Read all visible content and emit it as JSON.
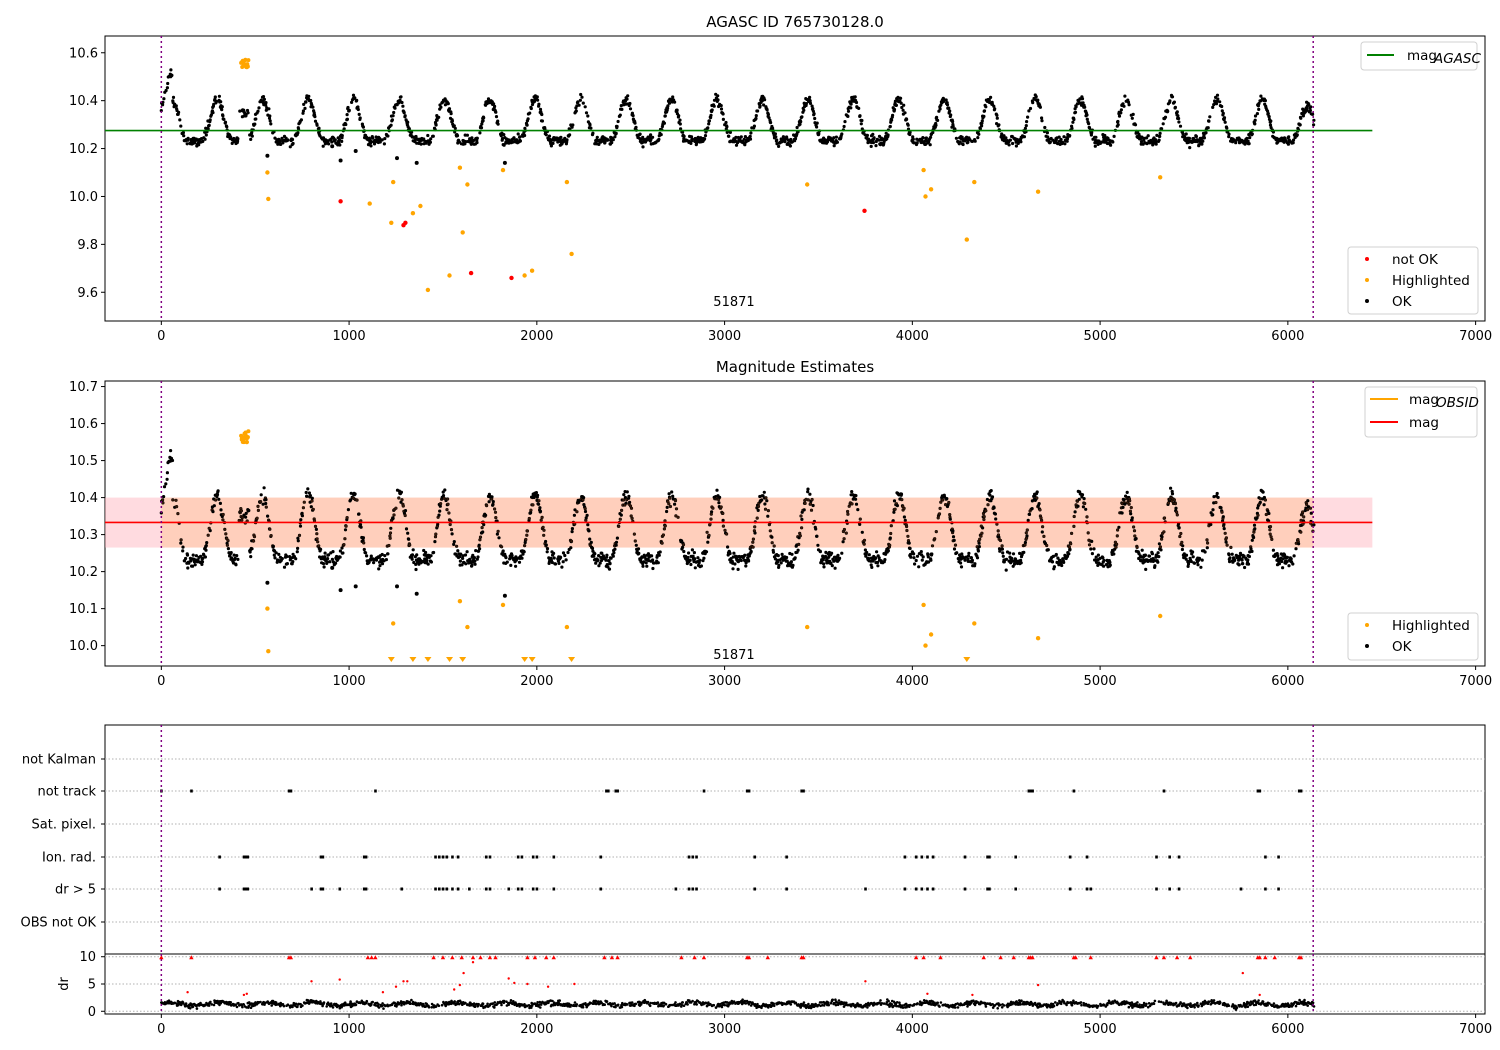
{
  "chart_data": [
    {
      "type": "scatter",
      "title": "AGASC ID 765730128.0",
      "xlim": [
        -300,
        7050
      ],
      "ylim": [
        9.48,
        10.67
      ],
      "xticks": [
        0,
        1000,
        2000,
        3000,
        4000,
        5000,
        6000,
        7000
      ],
      "yticks": [
        9.6,
        9.8,
        10.0,
        10.2,
        10.4,
        10.6
      ],
      "ytick_labels": [
        "9.6",
        "9.8",
        "10.0",
        "10.2",
        "10.4",
        "10.6"
      ],
      "annotation": {
        "x": 3050,
        "y": 9.56,
        "text": "51871"
      },
      "vlines": [
        0,
        6135
      ],
      "hline": {
        "y": 10.275,
        "x_range": [
          -300,
          6450
        ],
        "color": "#008000"
      },
      "series": [
        {
          "name": "OK",
          "color": "#000000",
          "description": "periodic light curve ~10.22–10.50, period ~242"
        },
        {
          "name": "Highlighted",
          "color": "#ffa500",
          "points": [
            [
              440,
              10.55
            ],
            [
              448,
              10.57
            ],
            [
              455,
              10.54
            ],
            [
              430,
              10.56
            ],
            [
              565,
              10.1
            ],
            [
              570,
              9.99
            ],
            [
              1110,
              9.97
            ],
            [
              1235,
              10.06
            ],
            [
              1225,
              9.89
            ],
            [
              1340,
              9.93
            ],
            [
              1380,
              9.96
            ],
            [
              1420,
              9.61
            ],
            [
              1535,
              9.67
            ],
            [
              1590,
              10.12
            ],
            [
              1605,
              9.85
            ],
            [
              1630,
              10.05
            ],
            [
              1820,
              10.11
            ],
            [
              1935,
              9.67
            ],
            [
              1975,
              9.69
            ],
            [
              2160,
              10.06
            ],
            [
              2185,
              9.76
            ],
            [
              3440,
              10.05
            ],
            [
              4060,
              10.11
            ],
            [
              4070,
              10.0
            ],
            [
              4100,
              10.03
            ],
            [
              4290,
              9.82
            ],
            [
              4330,
              10.06
            ],
            [
              4670,
              10.02
            ],
            [
              5320,
              10.08
            ]
          ]
        },
        {
          "name": "not OK",
          "color": "#ff0000",
          "points": [
            [
              955,
              9.98
            ],
            [
              1290,
              9.88
            ],
            [
              1300,
              9.89
            ],
            [
              1650,
              9.68
            ],
            [
              1865,
              9.66
            ],
            [
              3745,
              9.94
            ]
          ]
        }
      ],
      "extra_ok_points": [
        [
          565,
          10.17
        ],
        [
          955,
          10.15
        ],
        [
          1035,
          10.19
        ],
        [
          1255,
          10.16
        ],
        [
          1360,
          10.14
        ],
        [
          1830,
          10.14
        ],
        [
          910,
          10.21
        ]
      ],
      "legend_top": [
        {
          "label": "mag",
          "sub": "AGASC",
          "color": "#008000"
        }
      ],
      "legend_bottom": [
        {
          "label": "not OK",
          "color": "#ff0000"
        },
        {
          "label": "Highlighted",
          "color": "#ffa500"
        },
        {
          "label": "OK",
          "color": "#000000"
        }
      ]
    },
    {
      "type": "scatter",
      "title": "Magnitude Estimates",
      "xlim": [
        -300,
        7050
      ],
      "ylim": [
        9.945,
        10.715
      ],
      "xticks": [
        0,
        1000,
        2000,
        3000,
        4000,
        5000,
        6000,
        7000
      ],
      "yticks": [
        10.0,
        10.1,
        10.2,
        10.3,
        10.4,
        10.5,
        10.6,
        10.7
      ],
      "ytick_labels": [
        "10.0",
        "10.1",
        "10.2",
        "10.3",
        "10.4",
        "10.5",
        "10.6",
        "10.7"
      ],
      "annotation": {
        "x": 3050,
        "y": 9.975,
        "text": "51871"
      },
      "vlines": [
        0,
        6135
      ],
      "band": {
        "y_range": [
          10.265,
          10.4
        ],
        "x_range": [
          -300,
          6450
        ]
      },
      "hline": {
        "y": 10.333,
        "x_range": [
          -300,
          6450
        ],
        "color": "#ff0000"
      },
      "series": [
        {
          "name": "OK",
          "color": "#000000",
          "description": "same light curve, plus brown mag_OBSID overlay within band"
        },
        {
          "name": "Highlighted",
          "color": "#ffa500",
          "points": [
            [
              440,
              10.56
            ],
            [
              448,
              10.57
            ],
            [
              455,
              10.55
            ],
            [
              430,
              10.56
            ],
            [
              565,
              10.1
            ],
            [
              570,
              9.985
            ],
            [
              1235,
              10.06
            ],
            [
              1590,
              10.12
            ],
            [
              1630,
              10.05
            ],
            [
              1820,
              10.11
            ],
            [
              2160,
              10.05
            ],
            [
              3440,
              10.05
            ],
            [
              4060,
              10.11
            ],
            [
              4070,
              10.0
            ],
            [
              4100,
              10.03
            ],
            [
              4330,
              10.06
            ],
            [
              4670,
              10.02
            ],
            [
              5320,
              10.08
            ]
          ]
        },
        {
          "name": "below-range",
          "color": "#ffa500",
          "triangles": [
            1225,
            1340,
            1420,
            1535,
            1605,
            1935,
            1975,
            2185,
            4290
          ]
        }
      ],
      "extra_ok_points": [
        [
          565,
          10.17
        ],
        [
          955,
          10.15
        ],
        [
          1035,
          10.16
        ],
        [
          1255,
          10.16
        ],
        [
          1360,
          10.14
        ],
        [
          1830,
          10.135
        ],
        [
          910,
          10.21
        ]
      ],
      "legend_top": [
        {
          "label": "mag",
          "sub": "OBSID",
          "color": "#ffa500"
        },
        {
          "label": "mag",
          "sub": "",
          "color": "#ff0000"
        }
      ],
      "legend_bottom": [
        {
          "label": "Highlighted",
          "color": "#ffa500"
        },
        {
          "label": "OK",
          "color": "#000000"
        }
      ]
    },
    {
      "type": "scatter",
      "title": "",
      "xlim": [
        -300,
        7050
      ],
      "xticks": [
        0,
        1000,
        2000,
        3000,
        4000,
        5000,
        6000,
        7000
      ],
      "flag_rows": [
        "not Kalman",
        "not track",
        "Sat. pixel.",
        "Ion. rad.",
        "dr > 5",
        "OBS not OK"
      ],
      "flags": {
        "not track": [
          0,
          160,
          680,
          690,
          1140,
          2370,
          2380,
          2420,
          2430,
          2890,
          3120,
          3130,
          3410,
          3420,
          4620,
          4630,
          4640,
          4860,
          5340,
          5840,
          5850,
          6060,
          6070
        ],
        "Ion. rad.": [
          310,
          440,
          450,
          460,
          850,
          860,
          1080,
          1090,
          1460,
          1480,
          1500,
          1520,
          1550,
          1580,
          1730,
          1750,
          1900,
          1920,
          1980,
          2000,
          2090,
          2340,
          2810,
          2830,
          2850,
          3160,
          3330,
          3960,
          4020,
          4050,
          4080,
          4110,
          4280,
          4400,
          4410,
          4550,
          4840,
          4930,
          5300,
          5370,
          5420,
          5880,
          5950
        ],
        "dr > 5": [
          310,
          440,
          450,
          460,
          800,
          850,
          860,
          950,
          1080,
          1090,
          1280,
          1460,
          1480,
          1500,
          1520,
          1550,
          1580,
          1640,
          1730,
          1750,
          1850,
          1900,
          1920,
          1980,
          2000,
          2090,
          2340,
          2740,
          2810,
          2830,
          2850,
          3160,
          3330,
          3750,
          3960,
          4020,
          4050,
          4080,
          4110,
          4280,
          4400,
          4410,
          4550,
          4840,
          4930,
          4950,
          5300,
          5370,
          5420,
          5750,
          5880,
          5950
        ]
      },
      "dr_panel": {
        "ylabel": "dr",
        "ylim": [
          -0.5,
          10.5
        ],
        "yticks": [
          0,
          5,
          10
        ],
        "ok_range": [
          0,
          3
        ],
        "not_ok_at_10": [
          0,
          160,
          680,
          690,
          1100,
          1120,
          1140,
          1450,
          1500,
          1550,
          1600,
          1660,
          1700,
          1750,
          1780,
          1950,
          1990,
          2050,
          2090,
          2360,
          2400,
          2430,
          2770,
          2840,
          2890,
          3120,
          3130,
          3230,
          3410,
          3420,
          4020,
          4060,
          4150,
          4380,
          4470,
          4540,
          4620,
          4630,
          4640,
          4860,
          4870,
          4950,
          5300,
          5340,
          5410,
          5480,
          5840,
          5850,
          5880,
          5930,
          6060,
          6070
        ],
        "not_ok_scattered": [
          [
            140,
            3.5
          ],
          [
            440,
            3.0
          ],
          [
            455,
            3.2
          ],
          [
            800,
            5.5
          ],
          [
            950,
            5.8
          ],
          [
            1180,
            3.5
          ],
          [
            1250,
            4.5
          ],
          [
            1290,
            5.5
          ],
          [
            1310,
            5.5
          ],
          [
            1560,
            4.0
          ],
          [
            1590,
            4.8
          ],
          [
            1610,
            7.0
          ],
          [
            1660,
            9.0
          ],
          [
            1850,
            6.0
          ],
          [
            1880,
            5.2
          ],
          [
            1950,
            5.0
          ],
          [
            2060,
            4.5
          ],
          [
            2200,
            5.0
          ],
          [
            3750,
            5.5
          ],
          [
            4080,
            3.2
          ],
          [
            4320,
            3.0
          ],
          [
            4670,
            4.8
          ],
          [
            5760,
            7.0
          ],
          [
            5850,
            3.0
          ]
        ]
      }
    }
  ]
}
